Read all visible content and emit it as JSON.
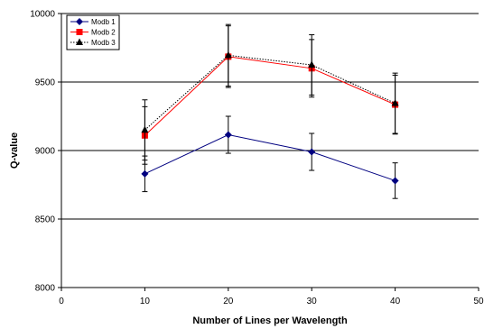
{
  "chart_data": {
    "type": "line",
    "xlabel": "Number of Lines per Wavelength",
    "ylabel": "Q-value",
    "xlim": [
      0,
      50
    ],
    "ylim": [
      8000,
      10000
    ],
    "x_ticks": [
      0,
      10,
      20,
      30,
      40,
      50
    ],
    "y_ticks": [
      8000,
      8500,
      9000,
      9500,
      10000
    ],
    "grid": "horizontal",
    "legend_position": "top-left",
    "x": [
      10,
      20,
      30,
      40
    ],
    "series": [
      {
        "name": "Modb 1",
        "color": "#000080",
        "marker": "diamond",
        "line_style": "solid",
        "values": [
          8830,
          9115,
          8990,
          8780
        ],
        "error": [
          130,
          135,
          135,
          130
        ]
      },
      {
        "name": "Modb 2",
        "color": "#ff0000",
        "marker": "square",
        "line_style": "solid",
        "values": [
          9110,
          9685,
          9600,
          9335
        ],
        "error": [
          210,
          225,
          210,
          215
        ]
      },
      {
        "name": "Modb 3",
        "color": "#000000",
        "marker": "triangle",
        "line_style": "dotted",
        "values": [
          9150,
          9695,
          9625,
          9345
        ],
        "error": [
          220,
          225,
          220,
          220
        ]
      }
    ]
  }
}
